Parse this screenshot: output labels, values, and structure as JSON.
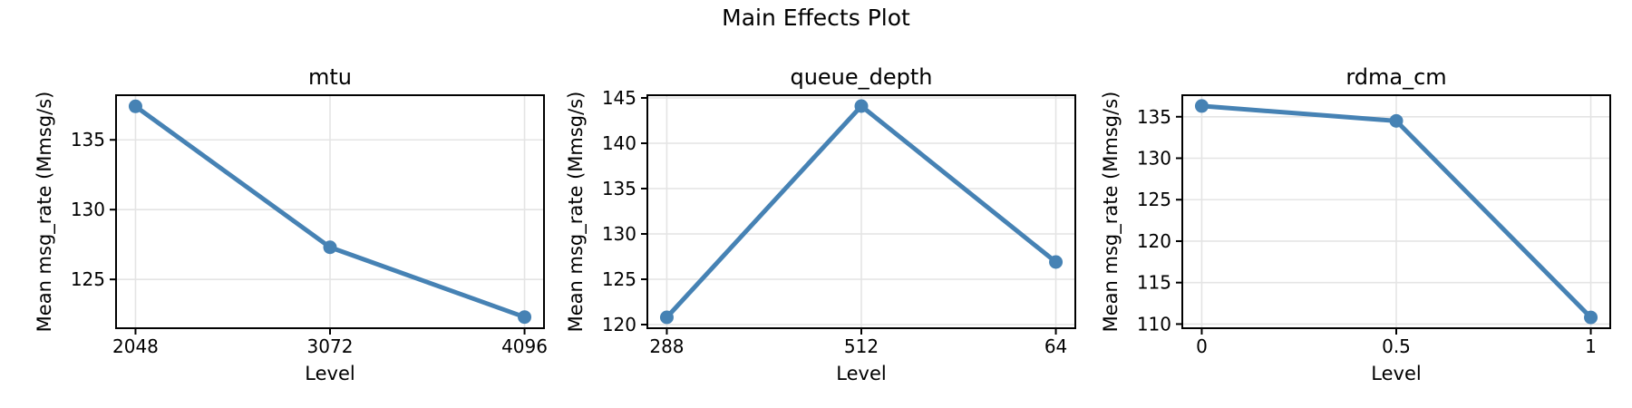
{
  "figure": {
    "suptitle": "Main Effects Plot"
  },
  "style": {
    "line_color": "#4682B4",
    "marker_color": "#4682B4",
    "grid_color": "#e4e4e4",
    "spine_color": "#000000",
    "text_color": "#000000",
    "background_color": "#ffffff"
  },
  "chart_data": [
    {
      "type": "line",
      "title": "mtu",
      "categories": [
        "2048",
        "3072",
        "4096"
      ],
      "values": [
        137.4,
        127.3,
        122.3
      ],
      "xlabel": "Level",
      "ylabel": "Mean msg_rate (Mmsg/s)",
      "yticks": [
        125,
        130,
        135
      ],
      "ylim": [
        121.5,
        138.2
      ],
      "grid": true,
      "legend": "none",
      "marker": "circle"
    },
    {
      "type": "line",
      "title": "queue_depth",
      "categories": [
        "288",
        "512",
        "64"
      ],
      "values": [
        120.8,
        144.1,
        126.9
      ],
      "xlabel": "Level",
      "ylabel": "Mean msg_rate (Mmsg/s)",
      "yticks": [
        120,
        125,
        130,
        135,
        140,
        145
      ],
      "ylim": [
        119.6,
        145.3
      ],
      "grid": true,
      "legend": "none",
      "marker": "circle"
    },
    {
      "type": "line",
      "title": "rdma_cm",
      "categories": [
        "0",
        "0.5",
        "1"
      ],
      "values": [
        136.3,
        134.5,
        110.8
      ],
      "xlabel": "Level",
      "ylabel": "Mean msg_rate (Mmsg/s)",
      "yticks": [
        110,
        115,
        120,
        125,
        130,
        135
      ],
      "ylim": [
        109.5,
        137.6
      ],
      "grid": true,
      "legend": "none",
      "marker": "circle"
    }
  ]
}
